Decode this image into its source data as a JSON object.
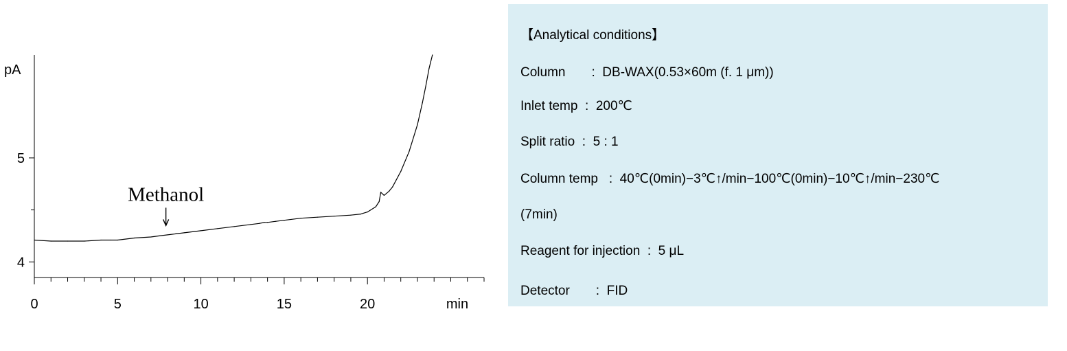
{
  "chart_data": {
    "type": "line",
    "title": "",
    "xlabel": "",
    "ylabel": "",
    "x_unit": "min",
    "y_unit": "pA",
    "xlim": [
      0,
      27
    ],
    "ylim": [
      3.85,
      5.99
    ],
    "x_ticks": [
      0,
      5,
      10,
      15,
      20
    ],
    "y_ticks": [
      4,
      5
    ],
    "grid": false,
    "series": [
      {
        "x": [
          0,
          1,
          2,
          3,
          4,
          4.6,
          5,
          6,
          7,
          7.5,
          8,
          8.5,
          9,
          10,
          11,
          12,
          13,
          13.5,
          13.8,
          14,
          14.5,
          15,
          16,
          17,
          18,
          19,
          19.6,
          20,
          20.5,
          20.7,
          20.8,
          21,
          21.3,
          21.5,
          22,
          22.5,
          23,
          23.3,
          23.5,
          23.7,
          23.9
        ],
        "y": [
          4.21,
          4.2,
          4.2,
          4.2,
          4.21,
          4.21,
          4.21,
          4.23,
          4.24,
          4.25,
          4.26,
          4.27,
          4.28,
          4.3,
          4.32,
          4.34,
          4.36,
          4.37,
          4.38,
          4.38,
          4.39,
          4.4,
          4.42,
          4.43,
          4.44,
          4.45,
          4.46,
          4.48,
          4.53,
          4.58,
          4.67,
          4.64,
          4.68,
          4.72,
          4.87,
          5.06,
          5.32,
          5.53,
          5.69,
          5.86,
          5.99
        ]
      }
    ],
    "annotations": [
      {
        "text": "Methanol",
        "x": 7.9,
        "y": 4.27
      }
    ]
  },
  "conditions": {
    "heading": "【Analytical conditions】",
    "lines": [
      "Column　　:  DB-WAX(0.53×60m (f. 1 μm))",
      "Inlet temp  :  200℃",
      "Split ratio  :  5 : 1",
      "Column temp   :  40℃(0min)−3℃↑/min−100℃(0min)−10℃↑/min−230℃",
      "(7min)",
      "Reagent for injection  :  5 μL",
      "Detector　　:  FID"
    ]
  }
}
